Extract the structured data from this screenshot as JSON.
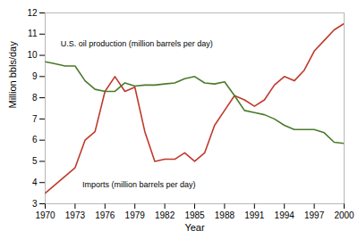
{
  "chart_data": {
    "type": "line",
    "x": [
      1970,
      1971,
      1972,
      1973,
      1974,
      1975,
      1976,
      1977,
      1978,
      1979,
      1980,
      1981,
      1982,
      1983,
      1984,
      1985,
      1986,
      1987,
      1988,
      1989,
      1990,
      1991,
      1992,
      1993,
      1994,
      1995,
      1996,
      1997,
      1998,
      1999,
      2000
    ],
    "series": [
      {
        "name": "U.S. oil production (million barrels per day)",
        "color": "#4a7a2a",
        "values": [
          9.7,
          9.6,
          9.5,
          9.5,
          8.8,
          8.4,
          8.3,
          8.3,
          8.7,
          8.55,
          8.6,
          8.6,
          8.65,
          8.7,
          8.9,
          9.0,
          8.7,
          8.65,
          8.75,
          8.1,
          7.4,
          7.3,
          7.2,
          7.0,
          6.7,
          6.5,
          6.5,
          6.5,
          6.35,
          5.9,
          5.85
        ]
      },
      {
        "name": "Imports (million barrels per day)",
        "color": "#c0392b",
        "values": [
          3.5,
          3.9,
          4.3,
          4.7,
          6.0,
          6.4,
          8.3,
          9.0,
          8.3,
          8.5,
          6.4,
          5.0,
          5.1,
          5.1,
          5.4,
          5.0,
          5.4,
          6.7,
          7.4,
          8.1,
          7.9,
          7.6,
          7.9,
          8.6,
          9.0,
          8.8,
          9.3,
          10.2,
          10.7,
          11.2,
          11.5
        ]
      }
    ],
    "xlabel": "Year",
    "ylabel": "Million bbls/day",
    "xlim": [
      1970,
      2000
    ],
    "ylim": [
      3,
      12
    ],
    "xticks": [
      1970,
      1973,
      1976,
      1979,
      1982,
      1985,
      1988,
      1991,
      1994,
      1997,
      2000
    ],
    "yticks": [
      3,
      4,
      5,
      6,
      7,
      8,
      9,
      10,
      11,
      12
    ],
    "grid": false
  }
}
